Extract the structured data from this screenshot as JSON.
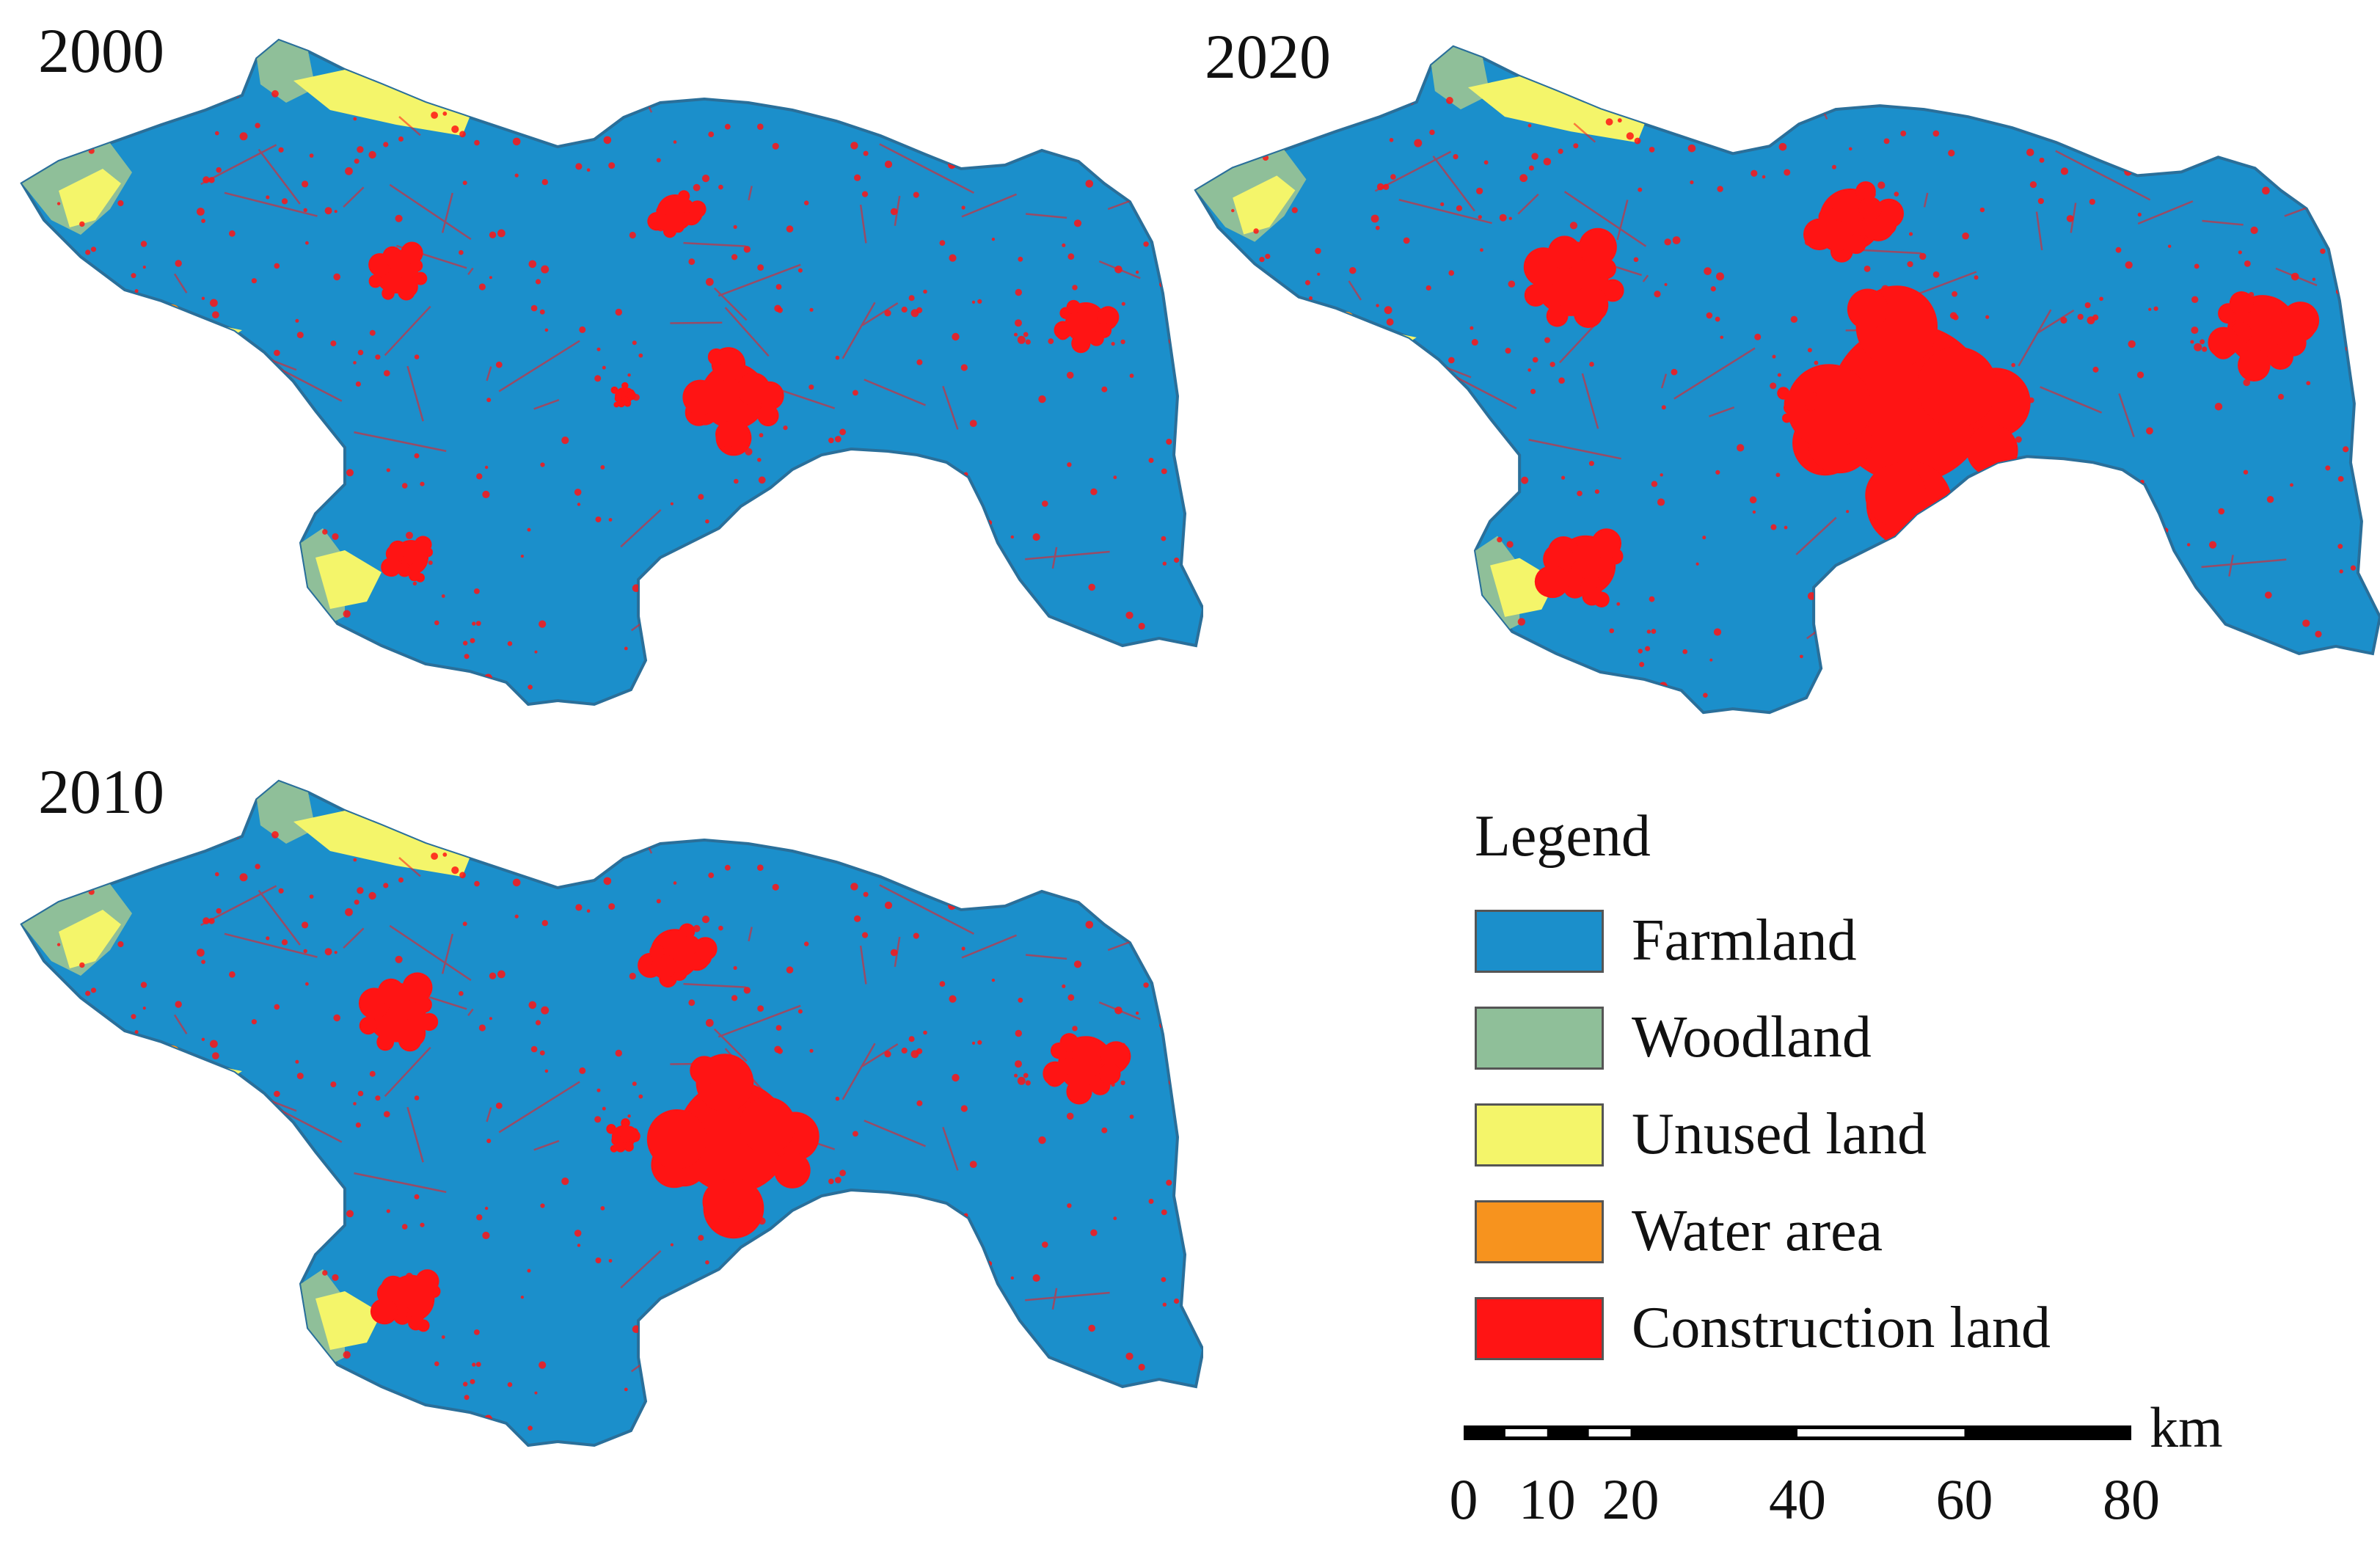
{
  "panels": [
    {
      "id": "p2000",
      "year": "2000",
      "growth": 0.0
    },
    {
      "id": "p2020",
      "year": "2020",
      "growth": 1.0
    },
    {
      "id": "p2010",
      "year": "2010",
      "growth": 0.5
    }
  ],
  "legend": {
    "title": "Legend",
    "items": [
      {
        "label": "Farmland",
        "color": "#1b8fcb"
      },
      {
        "label": "Woodland",
        "color": "#8fbf99"
      },
      {
        "label": "Unused land",
        "color": "#f4f56a"
      },
      {
        "label": "Water area",
        "color": "#f7931e"
      },
      {
        "label": "Construction land",
        "color": "#ff1414"
      }
    ]
  },
  "scale": {
    "unit": "km",
    "ticks": [
      "0",
      "10",
      "20",
      "40",
      "60",
      "80"
    ],
    "values": [
      0,
      10,
      20,
      40,
      60,
      80
    ]
  }
}
